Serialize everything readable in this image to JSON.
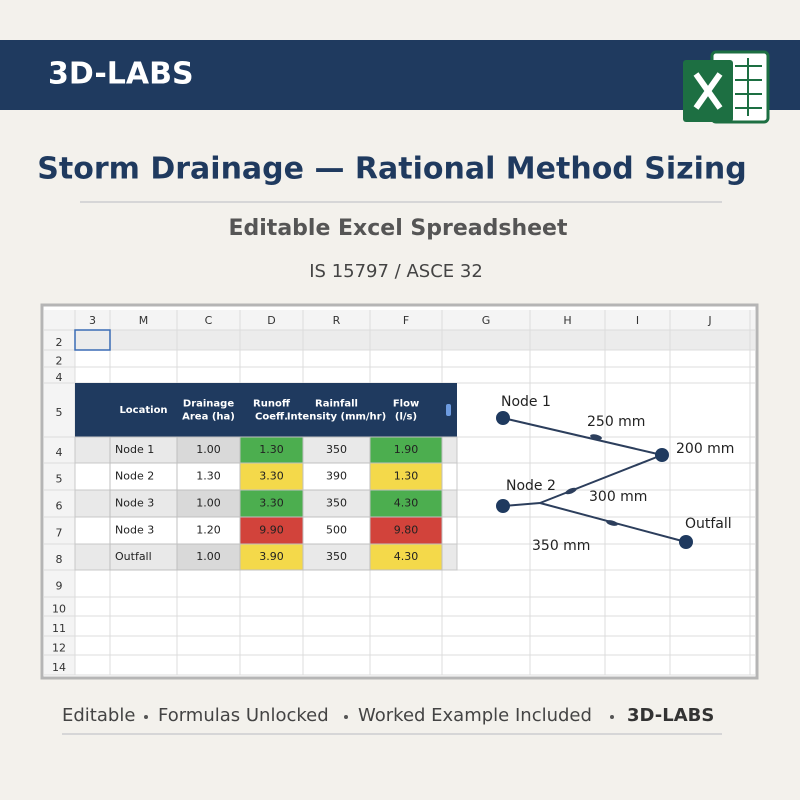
{
  "header": {
    "brand": "3D-LABS"
  },
  "title": "Storm Drainage — Rational Method Sizing",
  "subtitle": "Editable Excel Spreadsheet",
  "standard": "IS 15797 / ASCE 32",
  "sheet": {
    "columns": [
      "3",
      "M",
      "C",
      "D",
      "R",
      "F",
      "G",
      "H",
      "I",
      "J"
    ],
    "rows": [
      "2",
      "2",
      "4",
      "5",
      "4",
      "5",
      "6",
      "7",
      "8",
      "9",
      "10",
      "11",
      "12",
      "14"
    ],
    "table": {
      "headers": [
        "Location",
        "Drainage Area (ha)",
        "Runoff Coeff.",
        "Rainfall Intensity (mm/hr)",
        "Flow (l/s)"
      ],
      "rows": [
        [
          "Node 1",
          "1.00",
          "1.30",
          "350",
          "1.90"
        ],
        [
          "Node 2",
          "1.30",
          "3.30",
          "390",
          "1.30"
        ],
        [
          "Node 3",
          "1.00",
          "3.30",
          "350",
          "4.30"
        ],
        [
          "Node 3",
          "1.20",
          "9.90",
          "500",
          "9.80"
        ],
        [
          "Outfall",
          "1.00",
          "3.90",
          "350",
          "4.30"
        ]
      ],
      "colors": [
        "#4cae4f",
        "#f4d94a",
        "#4cae4f",
        "#d2433b",
        "#f4d94a"
      ]
    }
  },
  "diagram": {
    "nodes": [
      "Node 1",
      "200 mm",
      "Node 2",
      "Outfall"
    ],
    "pipes": [
      "250 mm",
      "300 mm",
      "350 mm"
    ]
  },
  "footer": {
    "items": [
      "Editable",
      "Formulas Unlocked",
      "Worked Example Included"
    ],
    "brand": "3D-LABS"
  }
}
